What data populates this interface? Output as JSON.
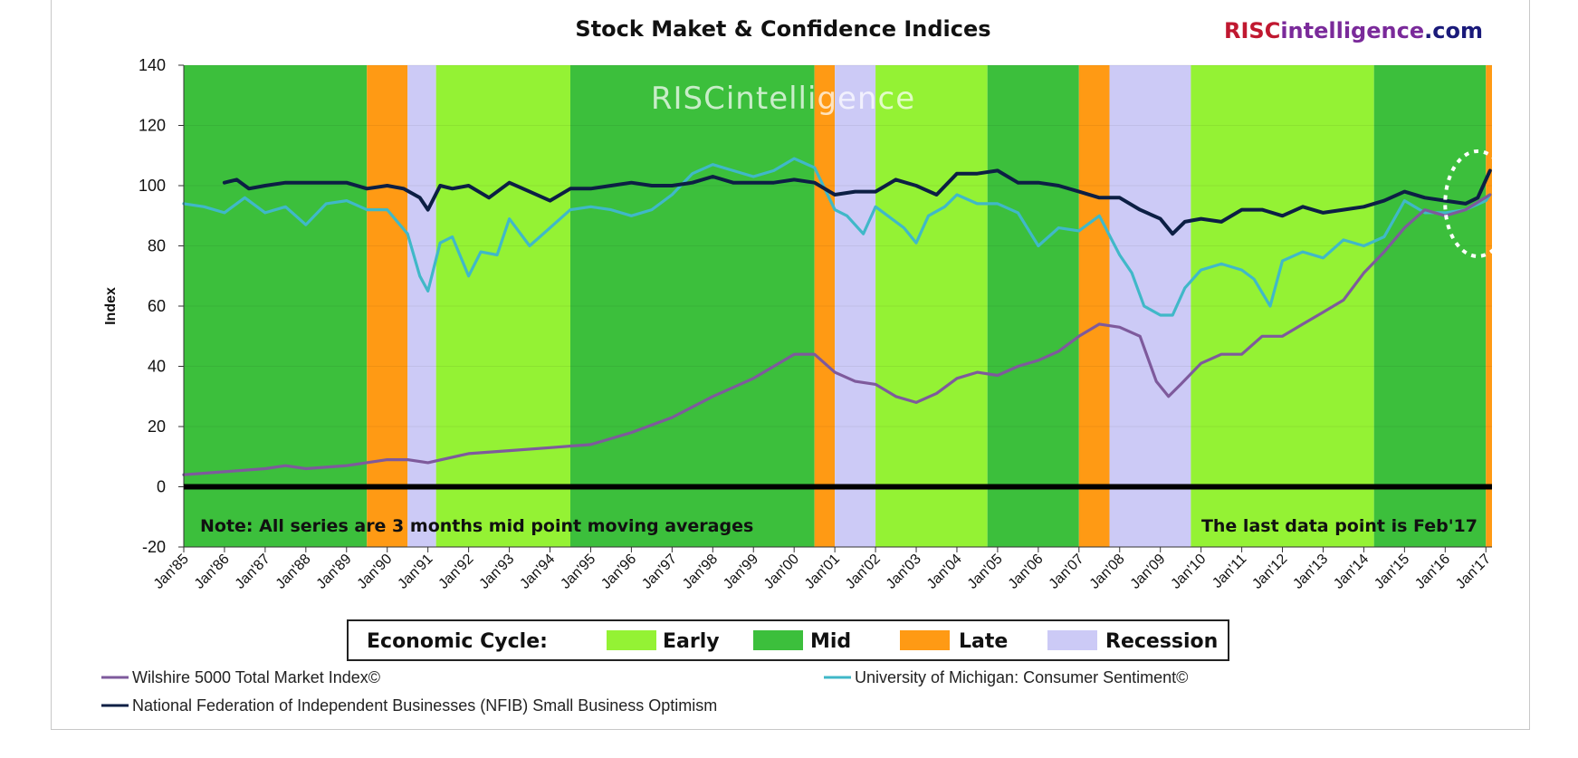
{
  "chart_data": {
    "type": "line",
    "title": "Stock Maket & Confidence Indices",
    "brand": {
      "part1": "RISC",
      "part2": "intelligence",
      "part3": ".com"
    },
    "watermark": "RISCintelligence",
    "ylabel": "Index",
    "xlabel": "",
    "ylim": [
      -20,
      140
    ],
    "yticks": [
      140,
      120,
      100,
      80,
      60,
      40,
      20,
      0,
      -20
    ],
    "xlim": [
      1985.0,
      2017.15
    ],
    "xticks": [
      {
        "label": "Jan'85",
        "value": 1985
      },
      {
        "label": "Jan'86",
        "value": 1986
      },
      {
        "label": "Jan'87",
        "value": 1987
      },
      {
        "label": "Jan'88",
        "value": 1988
      },
      {
        "label": "Jan'89",
        "value": 1989
      },
      {
        "label": "Jan'90",
        "value": 1990
      },
      {
        "label": "Jan'91",
        "value": 1991
      },
      {
        "label": "Jan'92",
        "value": 1992
      },
      {
        "label": "Jan'93",
        "value": 1993
      },
      {
        "label": "Jan'94",
        "value": 1994
      },
      {
        "label": "Jan'95",
        "value": 1995
      },
      {
        "label": "Jan'96",
        "value": 1996
      },
      {
        "label": "Jan'97",
        "value": 1997
      },
      {
        "label": "Jan'98",
        "value": 1998
      },
      {
        "label": "Jan'99",
        "value": 1999
      },
      {
        "label": "Jan'00",
        "value": 2000
      },
      {
        "label": "Jan'01",
        "value": 2001
      },
      {
        "label": "Jan'02",
        "value": 2002
      },
      {
        "label": "Jan'03",
        "value": 2003
      },
      {
        "label": "Jan'04",
        "value": 2004
      },
      {
        "label": "Jan'05",
        "value": 2005
      },
      {
        "label": "Jan'06",
        "value": 2006
      },
      {
        "label": "Jan'07",
        "value": 2007
      },
      {
        "label": "Jan'08",
        "value": 2008
      },
      {
        "label": "Jan'09",
        "value": 2009
      },
      {
        "label": "Jan'10",
        "value": 2010
      },
      {
        "label": "Jan'11",
        "value": 2011
      },
      {
        "label": "Jan'12",
        "value": 2012
      },
      {
        "label": "Jan'13",
        "value": 2013
      },
      {
        "label": "Jan'14",
        "value": 2014
      },
      {
        "label": "Jan'15",
        "value": 2015
      },
      {
        "label": "Jan'16",
        "value": 2016
      },
      {
        "label": "Jan'17",
        "value": 2017
      }
    ],
    "cycle_phases": [
      {
        "phase": "Mid",
        "start": 1985.0,
        "end": 1989.5
      },
      {
        "phase": "Late",
        "start": 1989.5,
        "end": 1990.5
      },
      {
        "phase": "Recession",
        "start": 1990.5,
        "end": 1991.2
      },
      {
        "phase": "Early",
        "start": 1991.2,
        "end": 1994.5
      },
      {
        "phase": "Mid",
        "start": 1994.5,
        "end": 2000.5
      },
      {
        "phase": "Late",
        "start": 2000.5,
        "end": 2001.0
      },
      {
        "phase": "Recession",
        "start": 2001.0,
        "end": 2002.0
      },
      {
        "phase": "Early",
        "start": 2002.0,
        "end": 2004.75
      },
      {
        "phase": "Mid",
        "start": 2004.75,
        "end": 2007.0
      },
      {
        "phase": "Late",
        "start": 2007.0,
        "end": 2007.75
      },
      {
        "phase": "Recession",
        "start": 2007.75,
        "end": 2009.75
      },
      {
        "phase": "Early",
        "start": 2009.75,
        "end": 2014.25
      },
      {
        "phase": "Mid",
        "start": 2014.25,
        "end": 2017.0
      },
      {
        "phase": "Late",
        "start": 2017.0,
        "end": 2017.15
      }
    ],
    "cycle_colors": {
      "Early": "#94f234",
      "Mid": "#3cbf3c",
      "Late": "#ff9a14",
      "Recession": "#cccaf6"
    },
    "series": [
      {
        "name": "National Federation of Independent Businesses (NFIB) Small Business Optimism",
        "color": "#0c1f44",
        "x": [
          1986.0,
          1986.3,
          1986.6,
          1987.0,
          1987.5,
          1988.0,
          1988.5,
          1989.0,
          1989.5,
          1990.0,
          1990.4,
          1990.8,
          1991.0,
          1991.3,
          1991.6,
          1992.0,
          1992.5,
          1993.0,
          1993.5,
          1994.0,
          1994.5,
          1995.0,
          1995.5,
          1996.0,
          1996.5,
          1997.0,
          1997.5,
          1998.0,
          1998.5,
          1999.0,
          1999.5,
          2000.0,
          2000.5,
          2001.0,
          2001.5,
          2002.0,
          2002.5,
          2003.0,
          2003.5,
          2004.0,
          2004.5,
          2005.0,
          2005.5,
          2006.0,
          2006.5,
          2007.0,
          2007.5,
          2008.0,
          2008.5,
          2009.0,
          2009.3,
          2009.6,
          2010.0,
          2010.5,
          2011.0,
          2011.5,
          2012.0,
          2012.5,
          2013.0,
          2013.5,
          2014.0,
          2014.5,
          2015.0,
          2015.5,
          2016.0,
          2016.5,
          2016.8,
          2017.1
        ],
        "values": [
          101,
          102,
          99,
          100,
          101,
          101,
          101,
          101,
          99,
          100,
          99,
          96,
          92,
          100,
          99,
          100,
          96,
          101,
          98,
          95,
          99,
          99,
          100,
          101,
          100,
          100,
          101,
          103,
          101,
          101,
          101,
          102,
          101,
          97,
          98,
          98,
          102,
          100,
          97,
          104,
          104,
          105,
          101,
          101,
          100,
          98,
          96,
          96,
          92,
          89,
          84,
          88,
          89,
          88,
          92,
          92,
          90,
          93,
          91,
          92,
          93,
          95,
          98,
          96,
          95,
          94,
          96,
          105
        ]
      },
      {
        "name": "University of Michigan: Consumer Sentiment©",
        "color": "#40b8c8",
        "x": [
          1985.0,
          1985.5,
          1986.0,
          1986.5,
          1987.0,
          1987.5,
          1988.0,
          1988.5,
          1989.0,
          1989.5,
          1990.0,
          1990.5,
          1990.8,
          1991.0,
          1991.3,
          1991.6,
          1992.0,
          1992.3,
          1992.7,
          1993.0,
          1993.5,
          1994.0,
          1994.5,
          1995.0,
          1995.5,
          1996.0,
          1996.5,
          1997.0,
          1997.5,
          1998.0,
          1998.5,
          1999.0,
          1999.5,
          2000.0,
          2000.5,
          2001.0,
          2001.3,
          2001.7,
          2002.0,
          2002.3,
          2002.7,
          2003.0,
          2003.3,
          2003.7,
          2004.0,
          2004.5,
          2005.0,
          2005.5,
          2006.0,
          2006.5,
          2007.0,
          2007.5,
          2008.0,
          2008.3,
          2008.6,
          2009.0,
          2009.3,
          2009.6,
          2010.0,
          2010.5,
          2011.0,
          2011.3,
          2011.7,
          2012.0,
          2012.5,
          2013.0,
          2013.5,
          2014.0,
          2014.5,
          2015.0,
          2015.5,
          2016.0,
          2016.5,
          2017.0,
          2017.1
        ],
        "values": [
          94,
          93,
          91,
          96,
          91,
          93,
          87,
          94,
          95,
          92,
          92,
          84,
          70,
          65,
          81,
          83,
          70,
          78,
          77,
          89,
          80,
          86,
          92,
          93,
          92,
          90,
          92,
          97,
          104,
          107,
          105,
          103,
          105,
          109,
          106,
          92,
          90,
          84,
          93,
          90,
          86,
          81,
          90,
          93,
          97,
          94,
          94,
          91,
          80,
          86,
          85,
          90,
          77,
          71,
          60,
          57,
          57,
          66,
          72,
          74,
          72,
          69,
          60,
          75,
          78,
          76,
          82,
          80,
          83,
          95,
          91,
          91,
          92,
          95,
          97
        ]
      },
      {
        "name": "Wilshire 5000 Total Market Index©",
        "color": "#7e5a9c",
        "x": [
          1985.0,
          1986.0,
          1987.0,
          1987.5,
          1988.0,
          1989.0,
          1990.0,
          1990.5,
          1991.0,
          1992.0,
          1993.0,
          1994.0,
          1995.0,
          1996.0,
          1997.0,
          1998.0,
          1998.5,
          1999.0,
          1999.5,
          2000.0,
          2000.5,
          2001.0,
          2001.5,
          2002.0,
          2002.5,
          2003.0,
          2003.5,
          2004.0,
          2004.5,
          2005.0,
          2005.5,
          2006.0,
          2006.5,
          2007.0,
          2007.5,
          2008.0,
          2008.5,
          2008.9,
          2009.2,
          2009.5,
          2010.0,
          2010.5,
          2011.0,
          2011.5,
          2012.0,
          2012.5,
          2013.0,
          2013.5,
          2014.0,
          2014.5,
          2015.0,
          2015.5,
          2016.0,
          2016.5,
          2017.1
        ],
        "values": [
          4,
          5,
          6,
          7,
          6,
          7,
          9,
          9,
          8,
          11,
          12,
          13,
          14,
          18,
          23,
          30,
          33,
          36,
          40,
          44,
          44,
          38,
          35,
          34,
          30,
          28,
          31,
          36,
          38,
          37,
          40,
          42,
          45,
          50,
          54,
          53,
          50,
          35,
          30,
          34,
          41,
          44,
          44,
          50,
          50,
          54,
          58,
          62,
          71,
          78,
          86,
          92,
          90,
          92,
          97
        ]
      }
    ],
    "note_left": "Note: All series are 3 months mid point moving averages",
    "note_right": "The last data point is Feb'17",
    "cycle_legend": {
      "title": "Economic Cycle:",
      "items": [
        "Early",
        "Mid",
        "Late",
        "Recession"
      ]
    },
    "highlight": {
      "x": 2016.8,
      "y": 94
    }
  }
}
